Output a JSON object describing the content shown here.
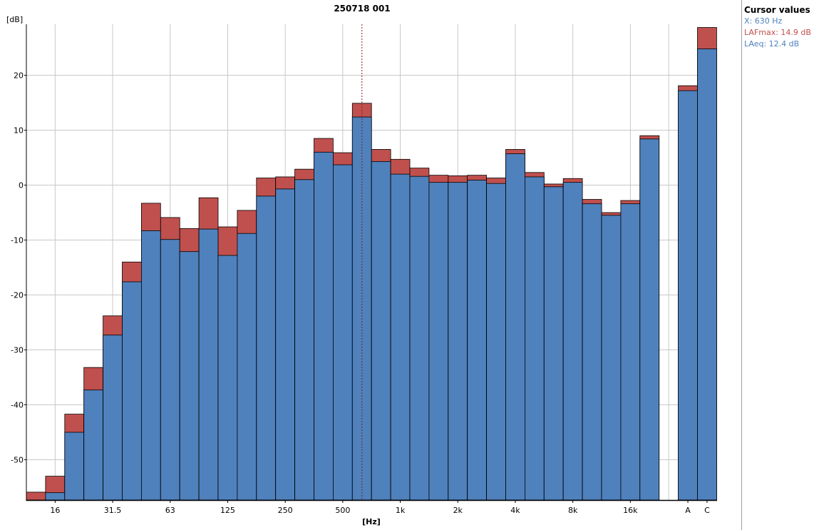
{
  "chart_data": {
    "type": "bar",
    "title": "250718 001",
    "ylabel": "[dB]",
    "xlabel": "[Hz]",
    "ylim": [
      -57,
      29
    ],
    "yticks": [
      20,
      10,
      0,
      -10,
      -20,
      -30,
      -40,
      -50
    ],
    "xtick_labels": [
      "16",
      "31.5",
      "63",
      "125",
      "250",
      "500",
      "1k",
      "2k",
      "4k",
      "8k",
      "16k",
      "A",
      "C"
    ],
    "grid": true,
    "overlay_style": "LAFmax drawn behind LAeq",
    "categories": [
      "12.5",
      "16",
      "20",
      "25",
      "31.5",
      "40",
      "50",
      "63",
      "80",
      "100",
      "125",
      "160",
      "200",
      "250",
      "315",
      "400",
      "500",
      "630",
      "800",
      "1k",
      "1.25k",
      "1.6k",
      "2k",
      "2.5k",
      "3.15k",
      "4k",
      "5k",
      "6.3k",
      "8k",
      "10k",
      "12.5k",
      "16k",
      "20k",
      "A",
      "C"
    ],
    "series": [
      {
        "name": "LAFmax",
        "color": "#c0504d",
        "values": [
          -55.9,
          -53.0,
          -41.7,
          -33.2,
          -23.8,
          -14.0,
          -3.3,
          -5.9,
          -7.9,
          -2.3,
          -7.6,
          -4.6,
          1.3,
          1.5,
          2.9,
          8.5,
          5.9,
          14.9,
          6.5,
          4.7,
          3.1,
          1.8,
          1.7,
          1.8,
          1.3,
          6.5,
          2.3,
          0.2,
          1.2,
          -2.6,
          -5.0,
          -2.8,
          9.0,
          18.1,
          28.7
        ]
      },
      {
        "name": "LAeq",
        "color": "#4f81bd",
        "values": [
          null,
          -56.0,
          -45.0,
          -37.3,
          -27.3,
          -17.6,
          -8.3,
          -9.9,
          -12.1,
          -8.0,
          -12.8,
          -8.8,
          -2.0,
          -0.7,
          1.0,
          6.0,
          3.7,
          12.4,
          4.3,
          2.0,
          1.6,
          0.5,
          0.5,
          0.9,
          0.3,
          5.7,
          1.5,
          -0.3,
          0.5,
          -3.4,
          -5.5,
          -3.4,
          8.4,
          17.2,
          24.8
        ]
      }
    ],
    "cursor": {
      "category": "630"
    }
  },
  "cursor_panel": {
    "title": "Cursor values",
    "x": "X: 630 Hz",
    "lafmax": "LAFmax: 14.9 dB",
    "laeq": "LAeq: 12.4 dB",
    "x_color": "#4f81bd",
    "lafmax_color": "#c0504d",
    "laeq_color": "#4f81bd"
  }
}
